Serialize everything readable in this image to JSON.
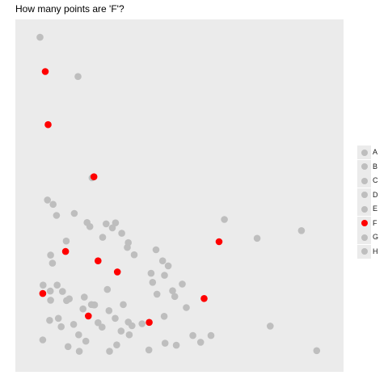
{
  "chart_data": {
    "type": "scatter",
    "title": "How many points are 'F'?",
    "xlabel": "",
    "ylabel": "",
    "xlim": [
      0,
      100
    ],
    "ylim": [
      0,
      100
    ],
    "grid": false,
    "legend_position": "right",
    "colors": {
      "panel_background": "#ebebeb",
      "other_point": "#bebebe",
      "highlight_point": "#ff0000"
    },
    "series": [
      {
        "name": "A",
        "color": "#bebebe",
        "x": [
          5.3,
          7.7,
          9.5,
          13.7,
          6.3,
          8.6,
          14.7,
          19.1,
          23.9
        ],
        "y": [
          97.1,
          48.7,
          47.4,
          36.5,
          23.4,
          21.6,
          19.3,
          16.3,
          12.2
        ]
      },
      {
        "name": "B",
        "color": "#bebebe",
        "x": [
          17.5,
          10.6,
          16.3,
          20.4,
          26.5,
          21.3,
          25.4,
          28.5,
          33.3
        ],
        "y": [
          85.4,
          44.1,
          44.7,
          42.0,
          41.6,
          40.8,
          37.6,
          40.4,
          34.6
        ],
        "comment_hidden": ""
      },
      {
        "name": "C",
        "color": "#bebebe",
        "x": [
          22.0,
          29.5,
          31.5,
          33.6,
          35.5,
          42.5,
          46.4,
          45.2,
          41.4
        ],
        "y": [
          55.3,
          41.9,
          38.8,
          36.0,
          32.4,
          33.9,
          29.1,
          26.3,
          24.2
        ]
      },
      {
        "name": "D",
        "color": "#bebebe",
        "x": [
          8.7,
          9.3,
          10.8,
          11.2,
          12.5,
          13.8,
          16.1,
          17.7,
          19.5
        ],
        "y": [
          32.3,
          29.9,
          23.4,
          13.5,
          21.5,
          18.8,
          11.7,
          8.6,
          19.8
        ]
      },
      {
        "name": "E",
        "color": "#bebebe",
        "x": [
          8.7,
          8.4,
          6.2,
          12.1,
          14.3,
          17.9,
          20.0,
          22.8,
          26.9
        ],
        "y": [
          18.9,
          12.9,
          7.1,
          11.0,
          5.1,
          3.7,
          6.7,
          17.5,
          22.1
        ]
      },
      {
        "name": "F",
        "color": "#ff0000",
        "x": [
          7.0,
          7.9,
          22.6,
          13.5,
          23.9,
          30.1,
          6.2,
          20.8,
          40.3,
          57.9,
          62.7
        ],
        "y": [
          86.9,
          71.1,
          55.6,
          33.4,
          30.6,
          27.3,
          20.9,
          14.2,
          12.3,
          19.4,
          36.3
        ]
      },
      {
        "name": "G",
        "color": "#bebebe",
        "x": [
          22.6,
          25.2,
          29.4,
          32.0,
          34.8,
          38.0,
          40.9,
          44.6,
          47.8
        ],
        "y": [
          17.5,
          10.9,
          13.5,
          17.6,
          11.3,
          11.9,
          26.9,
          30.6,
          21.7
        ]
      },
      {
        "name": "H",
        "color": "#bebebe",
        "x": [
          27.6,
          29.9,
          31.3,
          33.6,
          42.8,
          45.1,
          49.0,
          50.9,
          54.3,
          64.4,
          74.9,
          89.1,
          94.0,
          79.1,
          60.1,
          56.8,
          52.2,
          48.5,
          45.4,
          40.2,
          33.9,
          27.4,
          21.8
        ],
        "y": [
          3.7,
          5.6,
          9.7,
          12.4,
          20.7,
          14.1,
          5.5,
          23.7,
          8.4,
          42.9,
          37.3,
          39.6,
          3.9,
          11.2,
          8.4,
          6.4,
          16.7,
          20.0,
          6.1,
          4.1,
          8.6,
          15.8,
          17.6
        ]
      }
    ]
  }
}
